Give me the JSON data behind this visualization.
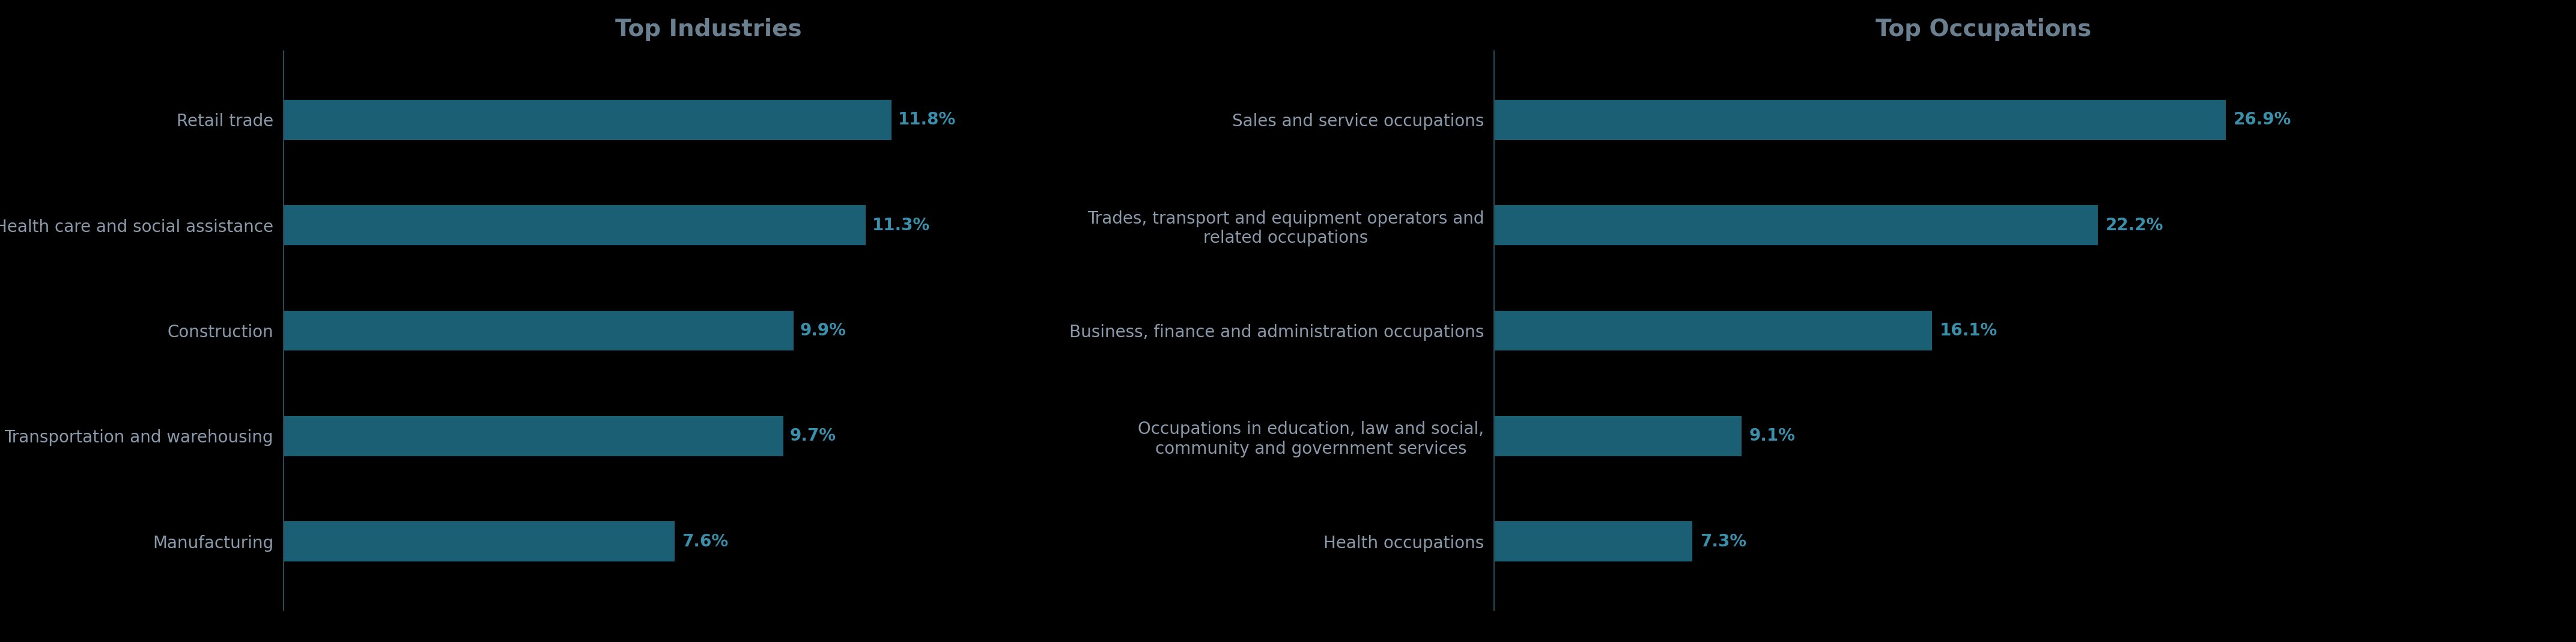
{
  "background_color": "#000000",
  "bar_color": "#1b5f74",
  "label_color": "#8a9aaa",
  "value_color": "#3a8faa",
  "title_color": "#6a8090",
  "title_fontsize": 28,
  "label_fontsize": 20,
  "value_fontsize": 20,
  "spine_color": "#2a4a5a",
  "left_title": "Top Industries",
  "left_categories": [
    "Retail trade",
    "Health care and social assistance",
    "Construction",
    "Transportation and warehousing",
    "Manufacturing"
  ],
  "left_values": [
    11.8,
    11.3,
    9.9,
    9.7,
    7.6
  ],
  "left_labels": [
    "11.8%",
    "11.3%",
    "9.9%",
    "9.7%",
    "7.6%"
  ],
  "left_xlim": [
    0,
    16.5
  ],
  "right_title": "Top Occupations",
  "right_categories": [
    "Sales and service occupations",
    "Trades, transport and equipment operators and\nrelated occupations",
    "Business, finance and administration occupations",
    "Occupations in education, law and social,\ncommunity and government services",
    "Health occupations"
  ],
  "right_values": [
    26.9,
    22.2,
    16.1,
    9.1,
    7.3
  ],
  "right_labels": [
    "26.9%",
    "22.2%",
    "16.1%",
    "9.1%",
    "7.3%"
  ],
  "right_xlim": [
    0,
    36
  ]
}
